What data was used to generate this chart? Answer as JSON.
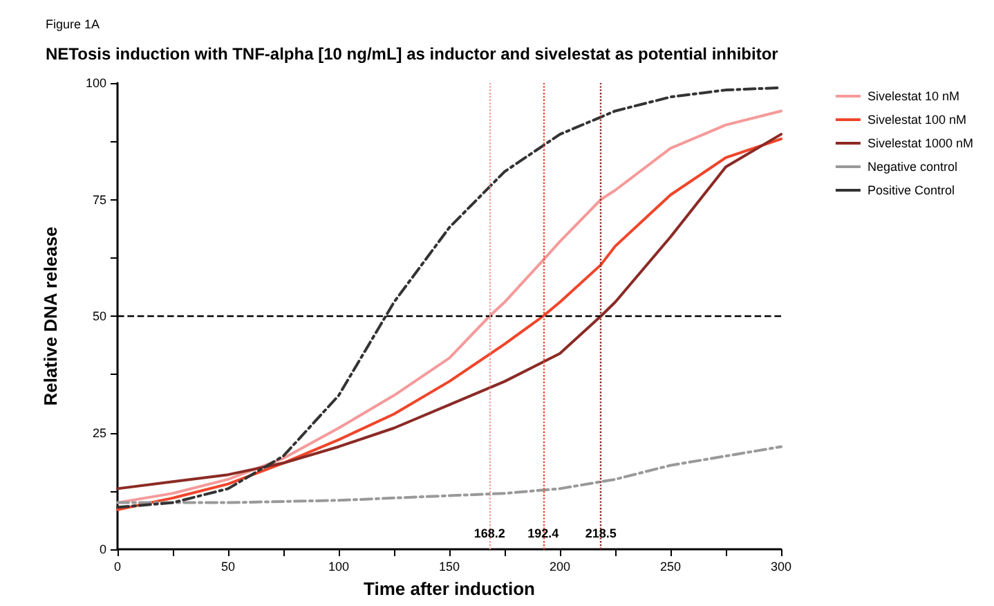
{
  "chart_data": {
    "type": "line",
    "title": "NETosis induction with TNF-alpha [10 ng/mL] as inductor and sivelestat as potential inhibitor",
    "xlabel": "Time after induction",
    "ylabel": "Relative DNA release",
    "annotations": [
      "Figure 1A"
    ],
    "xlim": [
      0,
      300
    ],
    "xticks": [
      0,
      {
        "value": 25,
        "label": null
      },
      50,
      {
        "value": 75,
        "label": null
      },
      100,
      {
        "value": 125,
        "label": null
      },
      150,
      {
        "value": 175,
        "label": null
      },
      200,
      {
        "value": 225,
        "label": null
      },
      250,
      {
        "value": 275,
        "label": null
      },
      300
    ],
    "ylim": [
      0,
      100
    ],
    "yticks": [
      0,
      {
        "value": 12.5,
        "label": null
      },
      25,
      {
        "value": 37.5,
        "label": null
      },
      50,
      {
        "value": 62.5,
        "label": null
      },
      75,
      {
        "value": 87.5,
        "label": null
      },
      100
    ],
    "grid": false,
    "legend": "top right",
    "marker": "none",
    "series": [
      {
        "name": "Sivelestat 10 nM",
        "color": "#f59a9a",
        "line_style": "solid",
        "x": [
          0,
          25,
          50,
          75,
          100,
          125,
          150,
          168.2,
          175,
          192.4,
          200,
          218.5,
          225,
          250,
          275,
          300
        ],
        "values": [
          10,
          12,
          15,
          19.5,
          26,
          33,
          41,
          50,
          53,
          62,
          66,
          75,
          77,
          86,
          91,
          94
        ]
      },
      {
        "name": "Sivelestat 100 nM",
        "color": "#f0452a",
        "line_style": "solid",
        "x": [
          0,
          25,
          50,
          75,
          100,
          125,
          150,
          175,
          192.4,
          200,
          218.5,
          225,
          250,
          275,
          300
        ],
        "values": [
          8.5,
          11,
          14,
          18.5,
          23.5,
          29,
          36,
          44,
          50,
          53,
          61,
          65,
          76,
          84,
          88
        ]
      },
      {
        "name": "Sivelestat 1000 nM",
        "color": "#8b2a25",
        "line_style": "solid",
        "x": [
          0,
          25,
          50,
          75,
          100,
          125,
          150,
          175,
          200,
          218.5,
          225,
          250,
          275,
          300
        ],
        "values": [
          13,
          14.5,
          16,
          18.5,
          22,
          26,
          31,
          36,
          42,
          50,
          53,
          67,
          82,
          89
        ]
      },
      {
        "name": "Negative control",
        "color": "#999999",
        "line_style": "dashed",
        "x": [
          0,
          50,
          100,
          150,
          175,
          200,
          225,
          250,
          275,
          300
        ],
        "values": [
          10,
          10,
          10.5,
          11.5,
          12,
          13,
          15,
          18,
          20,
          22
        ]
      },
      {
        "name": "Positive Control",
        "color": "#333333",
        "line_style": "dashed",
        "x": [
          0,
          25,
          50,
          75,
          100,
          125,
          150,
          175,
          200,
          225,
          250,
          275,
          300
        ],
        "values": [
          9,
          10,
          13,
          20,
          33,
          53,
          69,
          81,
          89,
          94,
          97,
          98.5,
          99
        ]
      }
    ],
    "ref_lines": [
      {
        "axis": "y",
        "value": 50,
        "color": "#000000",
        "line_style": "dashed"
      },
      {
        "axis": "x",
        "value": 168.2,
        "label": "168.2",
        "color": "#f59a9a",
        "line_style": "dotted"
      },
      {
        "axis": "x",
        "value": 192.4,
        "label": "192.4",
        "color": "#f0452a",
        "line_style": "dotted"
      },
      {
        "axis": "x",
        "value": 218.5,
        "label": "218.5",
        "color": "#8b2a25",
        "line_style": "dotted"
      }
    ]
  }
}
